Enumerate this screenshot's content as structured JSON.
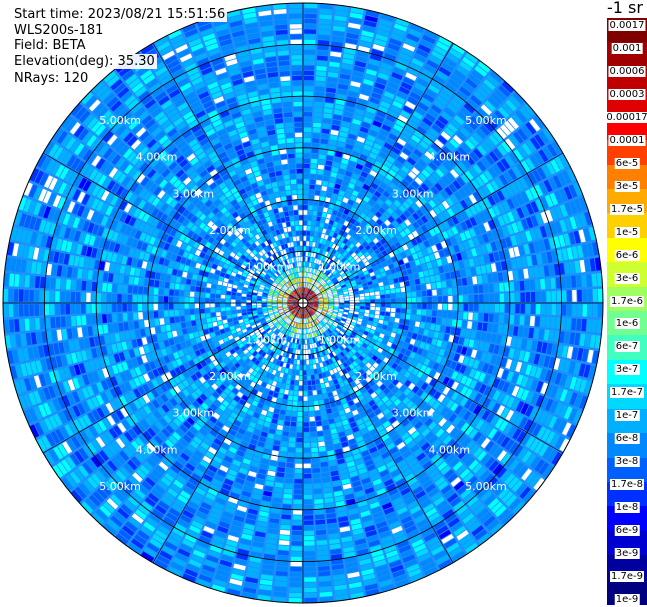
{
  "info": {
    "start_time": "Start time: 2023/08/21 15:51:56",
    "station": "WLS200s-181",
    "field": "Field: BETA",
    "elevation": "Elevation(deg): 35.30",
    "nrays": "NRays: 120"
  },
  "colorbar": {
    "unit_label": "-1 sr",
    "colors": [
      "#800000",
      "#a00000",
      "#c00000",
      "#e00000",
      "#ff0000",
      "#ff4000",
      "#ff8000",
      "#ffaa00",
      "#ffd000",
      "#ffff00",
      "#d0ff30",
      "#a0ff60",
      "#70ff90",
      "#40ffc0",
      "#00ffff",
      "#00d8ff",
      "#00b0ff",
      "#0088ff",
      "#0060ff",
      "#0030ff",
      "#0000ff",
      "#0000d0",
      "#0000a0",
      "#000080"
    ],
    "labels": [
      "0.0017",
      "0.001",
      "0.0006",
      "0.0003",
      "0.00017",
      "0.0001",
      "6e-5",
      "3e-5",
      "1.7e-5",
      "1e-5",
      "6e-6",
      "3e-6",
      "1.7e-6",
      "1e-6",
      "6e-7",
      "3e-7",
      "1.7e-7",
      "1e-7",
      "6e-8",
      "3e-8",
      "1.7e-8",
      "1e-8",
      "6e-9",
      "3e-9",
      "1.7e-9",
      "1e-9"
    ]
  },
  "chart_data": {
    "type": "heatmap",
    "projection": "polar PPI scan",
    "rays": 120,
    "range_rings_km": [
      1,
      2,
      3,
      4,
      5
    ],
    "range_ring_labels": [
      "1.00km",
      "2.00km",
      "3.00km",
      "4.00km",
      "5.00km"
    ],
    "max_range_km": 5.8,
    "colormap": "jet",
    "value_range": [
      1e-09,
      0.0017
    ],
    "log_scale": true
  }
}
